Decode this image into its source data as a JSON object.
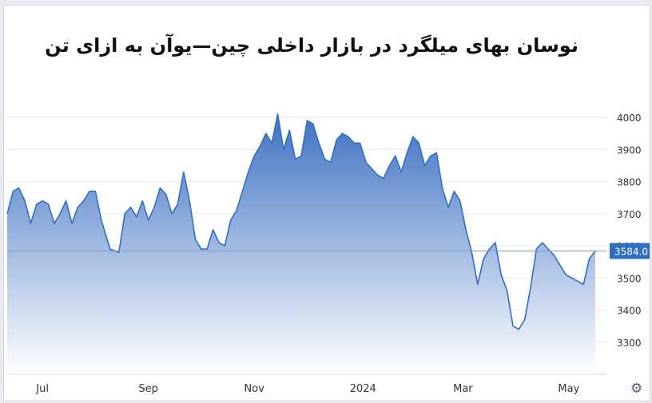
{
  "chart_data": {
    "type": "area",
    "title": "نوسان بهای میلگرد در بازار داخلی چین—یوآن به ازای تن",
    "xlabel": "",
    "ylabel": "",
    "ylim": [
      3200,
      4050
    ],
    "yticks": [
      3300,
      3400,
      3500,
      3600,
      3700,
      3800,
      3900,
      4000
    ],
    "xticks": [
      {
        "label": "Jul",
        "x": 0.06
      },
      {
        "label": "Sep",
        "x": 0.24
      },
      {
        "label": "Nov",
        "x": 0.42
      },
      {
        "label": "2024",
        "x": 0.605
      },
      {
        "label": "Mar",
        "x": 0.775
      },
      {
        "label": "May",
        "x": 0.955
      }
    ],
    "last_value_label": "3584.0",
    "colors": {
      "line": "#2f6fc0",
      "fill_top": "#3f72c2",
      "fill_bottom": "#ffffff",
      "grid": "#e3e6eb"
    },
    "series": [
      {
        "x": [
          0.0,
          0.01,
          0.02,
          0.03,
          0.04,
          0.05,
          0.06,
          0.07,
          0.08,
          0.09,
          0.1,
          0.11,
          0.12,
          0.13,
          0.14,
          0.15,
          0.16,
          0.175,
          0.19,
          0.2,
          0.21,
          0.22,
          0.23,
          0.24,
          0.25,
          0.26,
          0.27,
          0.28,
          0.29,
          0.3,
          0.31,
          0.32,
          0.33,
          0.34,
          0.35,
          0.36,
          0.37,
          0.38,
          0.39,
          0.4,
          0.41,
          0.42,
          0.43,
          0.44,
          0.45,
          0.46,
          0.47,
          0.48,
          0.49,
          0.5,
          0.51,
          0.52,
          0.53,
          0.54,
          0.55,
          0.56,
          0.57,
          0.58,
          0.59,
          0.6,
          0.61,
          0.62,
          0.63,
          0.64,
          0.65,
          0.66,
          0.67,
          0.68,
          0.69,
          0.7,
          0.71,
          0.72,
          0.73,
          0.74,
          0.75,
          0.76,
          0.77,
          0.78,
          0.79,
          0.8,
          0.81,
          0.82,
          0.83,
          0.84,
          0.85,
          0.86,
          0.87,
          0.88,
          0.89,
          0.9,
          0.91,
          0.92,
          0.93,
          0.94,
          0.95,
          0.96,
          0.97,
          0.98,
          0.99,
          1.0
        ],
        "y": [
          3700,
          3770,
          3780,
          3740,
          3670,
          3730,
          3740,
          3730,
          3670,
          3700,
          3740,
          3670,
          3720,
          3740,
          3770,
          3770,
          3680,
          3590,
          3580,
          3700,
          3720,
          3690,
          3740,
          3680,
          3720,
          3780,
          3760,
          3700,
          3730,
          3830,
          3740,
          3620,
          3590,
          3590,
          3650,
          3610,
          3600,
          3680,
          3710,
          3770,
          3830,
          3880,
          3910,
          3950,
          3920,
          4010,
          3900,
          3960,
          3870,
          3880,
          3990,
          3980,
          3920,
          3870,
          3860,
          3930,
          3950,
          3940,
          3920,
          3920,
          3860,
          3840,
          3820,
          3810,
          3850,
          3880,
          3830,
          3890,
          3940,
          3920,
          3850,
          3880,
          3890,
          3780,
          3720,
          3770,
          3740,
          3650,
          3580,
          3480,
          3560,
          3590,
          3610,
          3510,
          3460,
          3350,
          3340,
          3370,
          3470,
          3590,
          3610,
          3590,
          3570,
          3540,
          3510,
          3500,
          3490,
          3480,
          3560,
          3584
        ]
      }
    ]
  }
}
